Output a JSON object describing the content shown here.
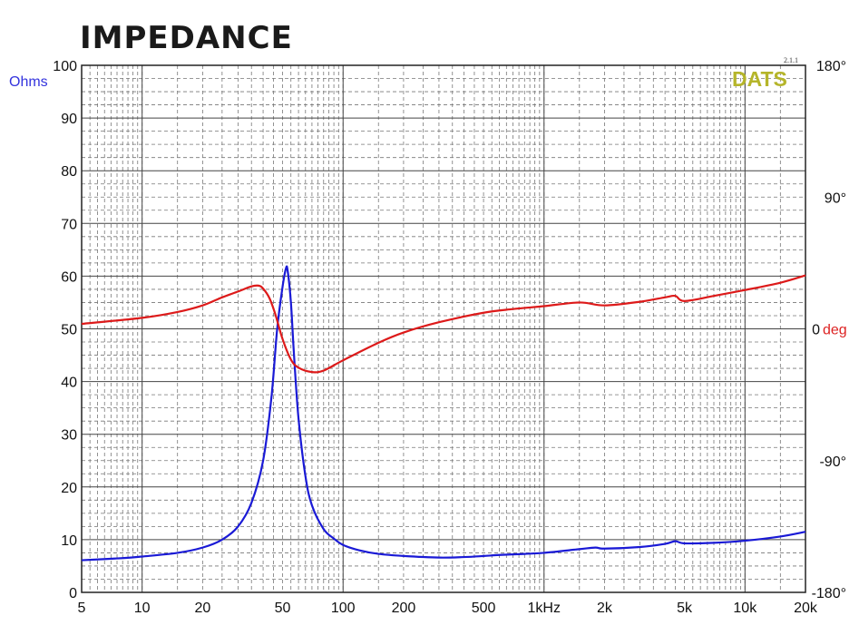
{
  "chart_data": {
    "type": "line",
    "title": "IMPEDANCE",
    "ylabel": "Ohms",
    "y2label": "deg",
    "brand": "DATS",
    "version": "2.1.1",
    "x_scale": "log",
    "xlim": [
      5,
      20000
    ],
    "ylim": [
      0,
      100
    ],
    "y2lim": [
      -180,
      180
    ],
    "grid": true,
    "x_ticks": [
      {
        "value": 5,
        "label": "5"
      },
      {
        "value": 10,
        "label": "10"
      },
      {
        "value": 20,
        "label": "20"
      },
      {
        "value": 50,
        "label": "50"
      },
      {
        "value": 100,
        "label": "100"
      },
      {
        "value": 200,
        "label": "200"
      },
      {
        "value": 500,
        "label": "500"
      },
      {
        "value": 1000,
        "label": "1kHz"
      },
      {
        "value": 2000,
        "label": "2k"
      },
      {
        "value": 5000,
        "label": "5k"
      },
      {
        "value": 10000,
        "label": "10k"
      },
      {
        "value": 20000,
        "label": "20k"
      }
    ],
    "y_ticks": [
      0,
      10,
      20,
      30,
      40,
      50,
      60,
      70,
      80,
      90,
      100
    ],
    "y2_ticks": [
      {
        "value": 180,
        "label": "180°"
      },
      {
        "value": 90,
        "label": "90°"
      },
      {
        "value": 0,
        "label": "0"
      },
      {
        "value": -90,
        "label": "-90°"
      },
      {
        "value": -180,
        "label": "-180°"
      }
    ],
    "series": [
      {
        "axis": "left",
        "color": "#1a1ad6",
        "x": [
          5,
          8,
          10,
          15,
          20,
          25,
          30,
          35,
          40,
          44,
          47,
          50,
          52,
          53,
          55,
          57,
          60,
          65,
          70,
          80,
          90,
          100,
          120,
          150,
          200,
          300,
          400,
          500,
          600,
          800,
          1000,
          1500,
          1800,
          2000,
          3000,
          4000,
          4500,
          5000,
          7000,
          10000,
          15000,
          20000
        ],
        "values": [
          6.1,
          6.5,
          6.8,
          7.5,
          8.5,
          10.0,
          12.5,
          17.0,
          25.0,
          37.0,
          50.0,
          58.0,
          61.5,
          61.0,
          55.0,
          45.0,
          33.0,
          22.0,
          16.5,
          12.0,
          10.2,
          9.0,
          8.0,
          7.3,
          6.9,
          6.6,
          6.7,
          6.9,
          7.1,
          7.3,
          7.5,
          8.2,
          8.5,
          8.3,
          8.6,
          9.2,
          9.7,
          9.3,
          9.4,
          9.8,
          10.6,
          11.5
        ]
      },
      {
        "axis": "right",
        "color": "#dd1a1a",
        "x": [
          5,
          10,
          15,
          20,
          25,
          30,
          35,
          38,
          40,
          43,
          46,
          50,
          55,
          60,
          70,
          80,
          100,
          150,
          200,
          300,
          500,
          700,
          1000,
          1500,
          2000,
          3000,
          4000,
          4500,
          5000,
          7000,
          10000,
          15000,
          20000
        ],
        "values": [
          3.4,
          7.5,
          11.5,
          16.0,
          21.5,
          25.5,
          29.0,
          29.5,
          27.5,
          21.0,
          10.0,
          -7.0,
          -21.0,
          -26.5,
          -29.5,
          -28.5,
          -21.5,
          -9.5,
          -2.5,
          4.5,
          11.0,
          13.5,
          15.5,
          18.0,
          16.0,
          18.5,
          21.5,
          22.5,
          19.0,
          22.5,
          26.5,
          31.5,
          36.5
        ]
      }
    ]
  }
}
